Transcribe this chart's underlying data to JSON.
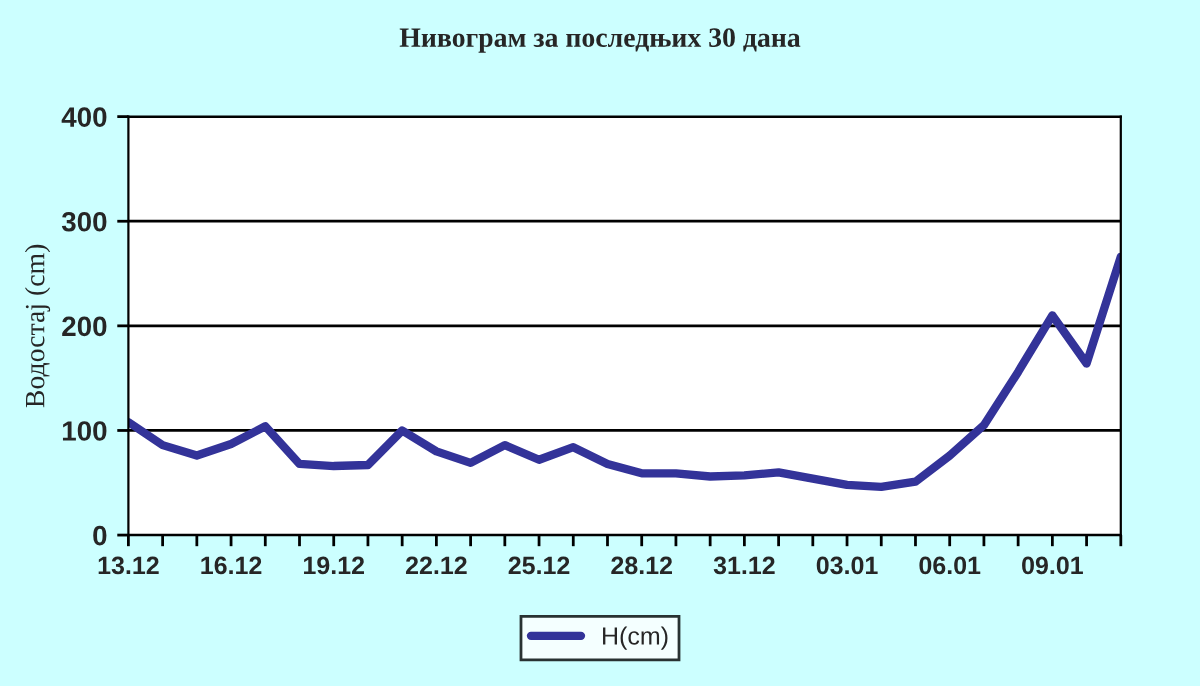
{
  "chart_data": {
    "type": "line",
    "title": "Нивограм за последњих 30 дана",
    "ylabel": "Водостај (cm)",
    "categories": [
      "13.12",
      null,
      null,
      "16.12",
      null,
      null,
      "19.12",
      null,
      null,
      "22.12",
      null,
      null,
      "25.12",
      null,
      null,
      "28.12",
      null,
      null,
      "31.12",
      null,
      null,
      "03.01",
      null,
      null,
      "06.01",
      null,
      null,
      "09.01",
      null,
      null
    ],
    "series": [
      {
        "name": "H(cm)",
        "color": "#333399",
        "values": [
          108,
          86,
          76,
          87,
          104,
          68,
          66,
          67,
          100,
          80,
          69,
          86,
          72,
          84,
          68,
          59,
          59,
          56,
          57,
          60,
          54,
          48,
          46,
          51,
          76,
          105,
          156,
          210,
          164,
          266
        ]
      }
    ],
    "ylim": [
      0,
      400
    ],
    "yticks": [
      0,
      100,
      200,
      300,
      400
    ],
    "grid": "y",
    "legend": "bottom",
    "marker": "none",
    "line_style": "solid"
  }
}
